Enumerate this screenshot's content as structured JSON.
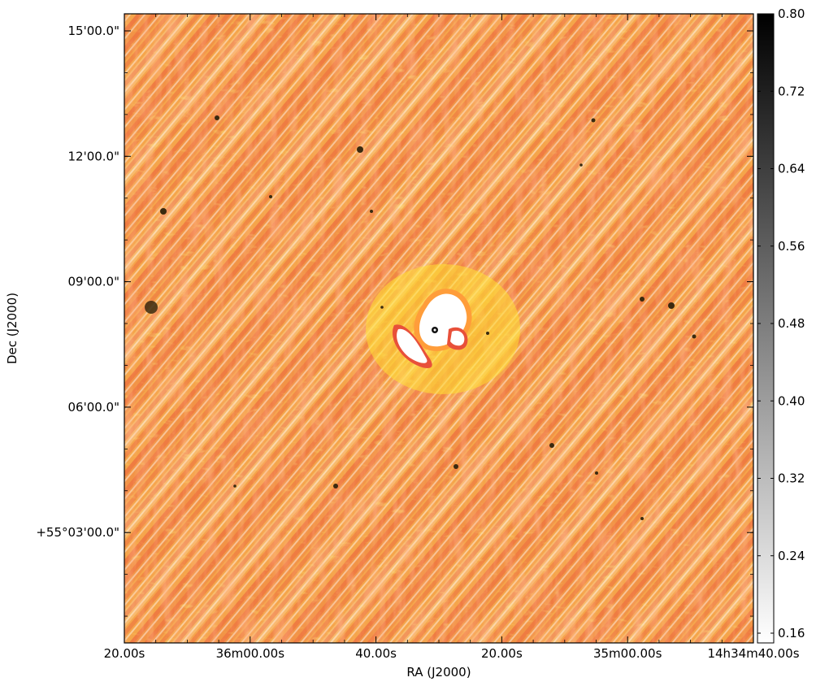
{
  "chart_data": {
    "type": "heatmap",
    "title": "",
    "xlabel": "RA (J2000)",
    "ylabel": "Dec (J2000)",
    "x_tick_labels": [
      "20.00s",
      "36m00.00s",
      "40.00s",
      "20.00s",
      "35m00.00s",
      "14h34m40.00s"
    ],
    "y_tick_labels": [
      "15'00.0\"",
      "12'00.0\"",
      "09'00.0\"",
      "06'00.0\"",
      "+55°03'00.0\""
    ],
    "colorbar": {
      "colormap": "gray_r",
      "range": [
        0.16,
        0.8
      ],
      "tick_labels": [
        "0.80",
        "0.72",
        "0.64",
        "0.56",
        "0.48",
        "0.40",
        "0.32",
        "0.24",
        "0.16"
      ]
    },
    "image": {
      "background_colormap": "hot-orange",
      "diagonal_stripe_pattern": true,
      "central_bright_source": true
    },
    "colors": {
      "orange": "#f5a54a",
      "red": "#e8503a",
      "yellow": "#ffe233",
      "white": "#ffffff",
      "dark_spot": "#3a2a10"
    }
  }
}
